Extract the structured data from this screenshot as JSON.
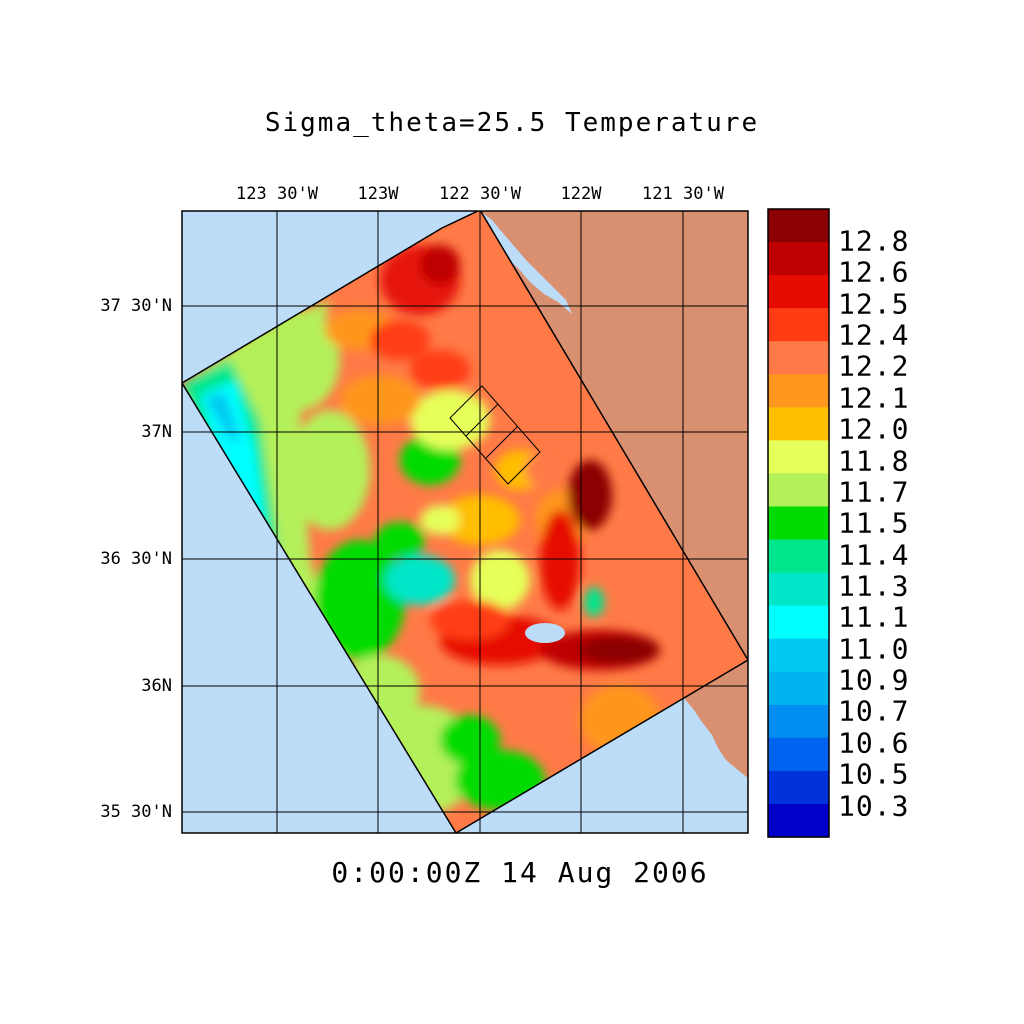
{
  "title": "Sigma_theta=25.5 Temperature",
  "timestamp": "0:00:00Z  14 Aug 2006",
  "axes": {
    "lon_labels": [
      "123 30'W",
      "123W",
      "122 30'W",
      "122W",
      "121 30'W"
    ],
    "lat_labels": [
      "37 30'N",
      "37N",
      "36 30'N",
      "36N",
      "35 30'N"
    ]
  },
  "colorbar": {
    "unit_labels": [
      "12.8",
      "12.6",
      "12.5",
      "12.4",
      "12.2",
      "12.1",
      "12.0",
      "11.8",
      "11.7",
      "11.5",
      "11.4",
      "11.3",
      "11.1",
      "11.0",
      "10.9",
      "10.7",
      "10.6",
      "10.5",
      "10.3"
    ],
    "colors": [
      "#8b0000",
      "#be0000",
      "#e60b00",
      "#ff3c14",
      "#ff7a46",
      "#ff961e",
      "#ffbe00",
      "#e6ff5a",
      "#b4f05a",
      "#00dc00",
      "#00e68c",
      "#00e6c8",
      "#00ffff",
      "#00c8f0",
      "#00b4f0",
      "#008cf0",
      "#0064f0",
      "#0032dc",
      "#0000c8"
    ]
  },
  "map_colors": {
    "ocean": "#bcdcf8",
    "land": "#d99070",
    "grid": "#000000"
  }
}
